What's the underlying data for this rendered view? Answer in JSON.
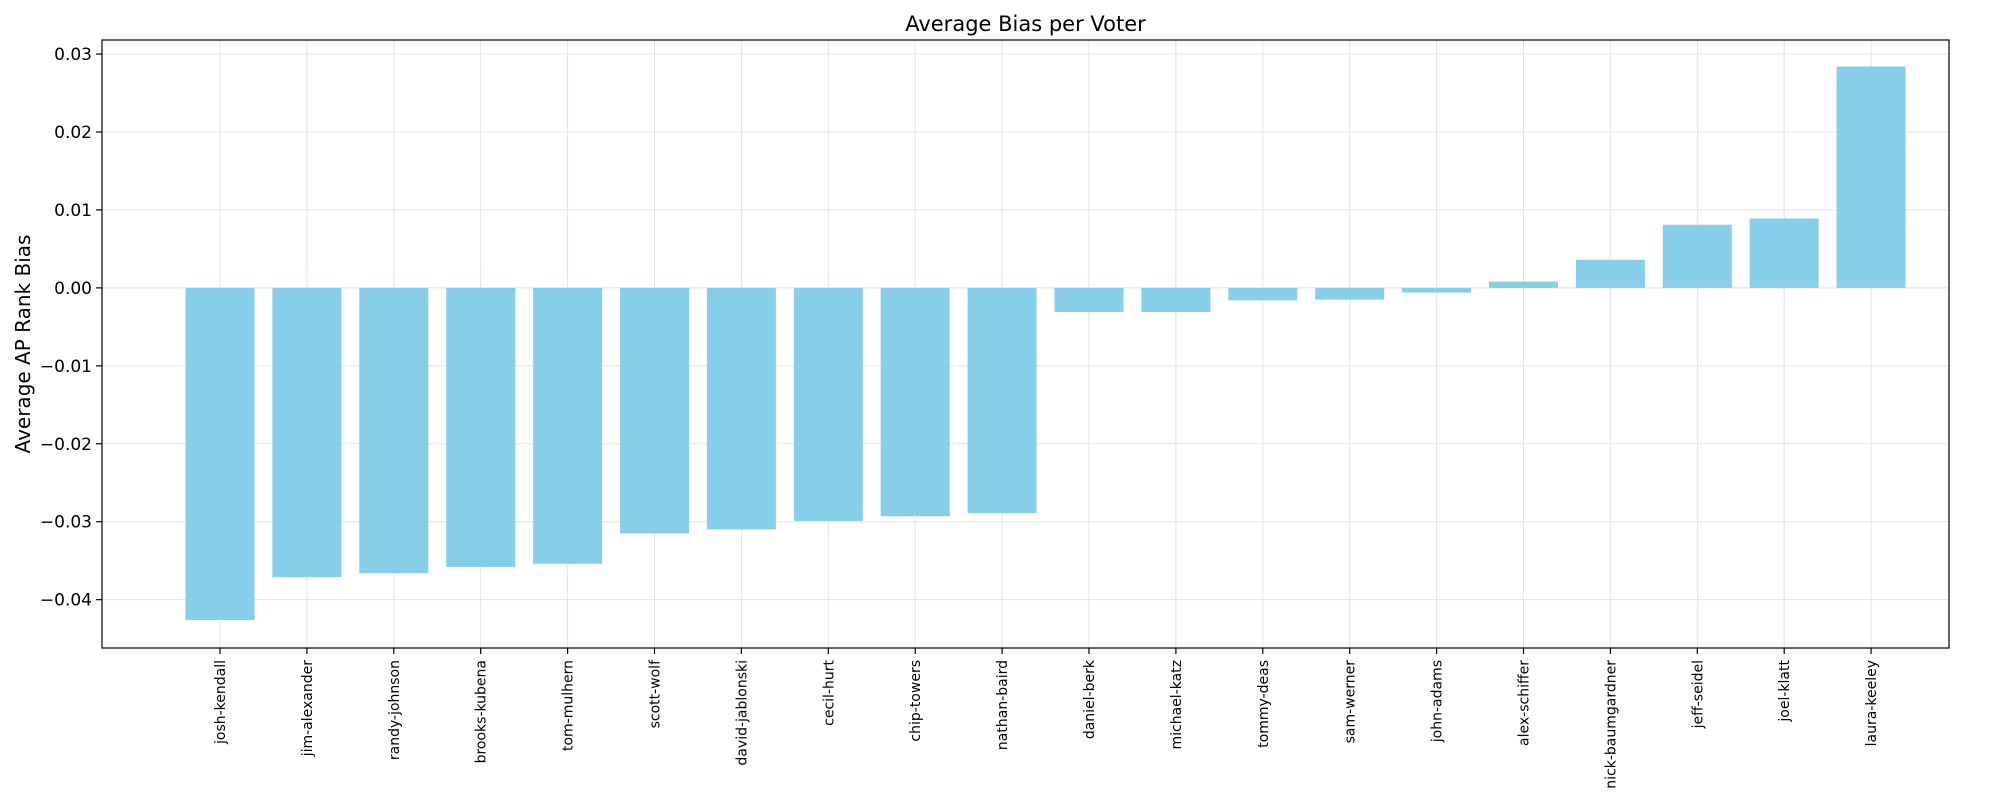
{
  "chart_data": {
    "type": "bar",
    "title": "Average Bias per Voter",
    "xlabel": "",
    "ylabel": "Average AP Rank Bias",
    "categories": [
      "josh-kendall",
      "jim-alexander",
      "randy-johnson",
      "brooks-kubena",
      "tom-mulhern",
      "scott-wolf",
      "david-jablonski",
      "cecil-hurt",
      "chip-towers",
      "nathan-baird",
      "daniel-berk",
      "michael-katz",
      "tommy-deas",
      "sam-werner",
      "john-adams",
      "alex-schiffer",
      "nick-baumgardner",
      "jeff-seidel",
      "joel-klatt",
      "laura-keeley"
    ],
    "values": [
      -0.0426,
      -0.0371,
      -0.0366,
      -0.0358,
      -0.0354,
      -0.0315,
      -0.031,
      -0.0299,
      -0.0293,
      -0.0289,
      -0.0031,
      -0.0031,
      -0.0016,
      -0.0015,
      -0.0006,
      0.0008,
      0.0036,
      0.0081,
      0.0089,
      0.0284
    ],
    "ylim": [
      -0.0462,
      0.0318
    ],
    "yticks": [
      -0.04,
      -0.03,
      -0.02,
      -0.01,
      0.0,
      0.01,
      0.02,
      0.03
    ],
    "ytick_labels": [
      "−0.04",
      "−0.03",
      "−0.02",
      "−0.01",
      "0.00",
      "0.01",
      "0.02",
      "0.03"
    ],
    "grid": true,
    "bar_color": "#87CEEB"
  }
}
